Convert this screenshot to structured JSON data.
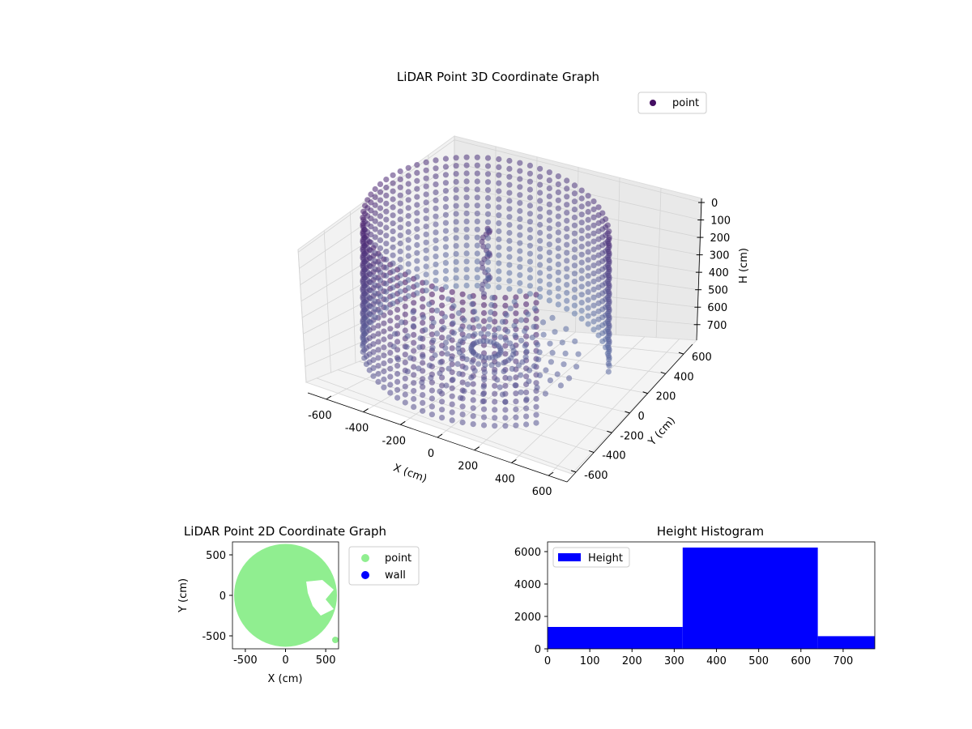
{
  "chart_data": [
    {
      "type": "scatter",
      "title": "LiDAR Point 3D Coordinate Graph",
      "xlabel": "X (cm)",
      "ylabel": "Y (cm)",
      "zlabel": "H (cm)",
      "xlim": [
        -700,
        700
      ],
      "ylim": [
        -700,
        700
      ],
      "zlim": [
        0,
        780
      ],
      "z_inverted": true,
      "xticks": [
        -600,
        -400,
        -200,
        0,
        200,
        400,
        600
      ],
      "yticks": [
        -600,
        -400,
        -200,
        0,
        200,
        400,
        600
      ],
      "zticks": [
        0,
        100,
        200,
        300,
        400,
        500,
        600,
        700
      ],
      "grid": true,
      "legend": {
        "placement": "top-right",
        "entries": [
          "point"
        ]
      },
      "series": [
        {
          "name": "point",
          "color": "#440e62",
          "shape": "circular wall of radius ~600 cm with floor points and a vertical column near the center",
          "wall_radius": 600,
          "height_range": [
            0,
            740
          ]
        }
      ]
    },
    {
      "type": "scatter",
      "title": "LiDAR Point 2D Coordinate Graph",
      "xlabel": "X (cm)",
      "ylabel": "Y (cm)",
      "xlim": [
        -660,
        660
      ],
      "ylim": [
        -660,
        660
      ],
      "xticks": [
        -500,
        0,
        500
      ],
      "yticks": [
        -500,
        0,
        500
      ],
      "legend": {
        "placement": "outside-right",
        "entries": [
          "point",
          "wall"
        ]
      },
      "series": [
        {
          "name": "point",
          "color": "#90ee90",
          "radius": 640
        },
        {
          "name": "wall",
          "color": "#0000ff"
        }
      ]
    },
    {
      "type": "bar",
      "title": "Height Histogram",
      "xlim": [
        0,
        775
      ],
      "ylim": [
        0,
        6600
      ],
      "xticks": [
        0,
        100,
        200,
        300,
        400,
        500,
        600,
        700
      ],
      "yticks": [
        0,
        2000,
        4000,
        6000
      ],
      "legend": {
        "placement": "top-left",
        "entries": [
          "Height"
        ]
      },
      "bins": [
        {
          "start": 0,
          "end": 320,
          "count": 1350
        },
        {
          "start": 320,
          "end": 640,
          "count": 6250
        },
        {
          "start": 640,
          "end": 775,
          "count": 780
        }
      ],
      "color": "#0000ff"
    }
  ]
}
